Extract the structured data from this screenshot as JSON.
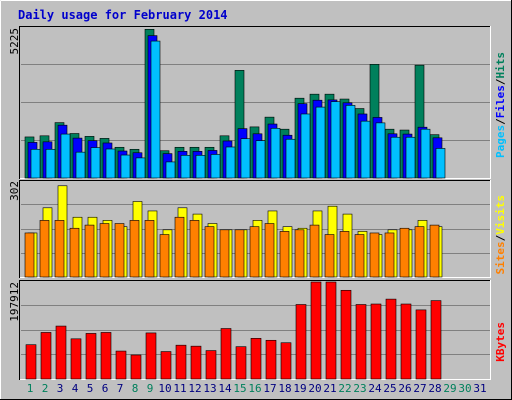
{
  "title": "Daily usage for February 2014",
  "colors": {
    "background": "#c0c0c0",
    "title": "#0000cc",
    "hits": "#00805c",
    "files": "#0000ff",
    "pages": "#00c0ff",
    "visits": "#ffff00",
    "sites": "#ff8000",
    "kbytes": "#ff0000",
    "weekday_label": "#000080",
    "weekend_label": "#00805c"
  },
  "chart_data": [
    {
      "type": "bar",
      "name": "hits-files-pages",
      "categories": [
        "1",
        "2",
        "3",
        "4",
        "5",
        "6",
        "7",
        "8",
        "9",
        "10",
        "11",
        "12",
        "13",
        "14",
        "15",
        "16",
        "17",
        "18",
        "19",
        "20",
        "21",
        "22",
        "23",
        "24",
        "25",
        "26",
        "27",
        "28",
        "29",
        "30",
        "31"
      ],
      "ymax_label": "5225",
      "ylim": [
        0,
        5225
      ],
      "grid": true,
      "right_label": [
        "Pages",
        "Files",
        "Hits"
      ],
      "series": [
        {
          "name": "Hits",
          "values": [
            1430,
            1470,
            1930,
            1550,
            1450,
            1380,
            1070,
            1000,
            5180,
            950,
            1070,
            1070,
            1070,
            1470,
            3750,
            1780,
            2120,
            1700,
            2780,
            2920,
            2920,
            2750,
            2420,
            3960,
            1700,
            1670,
            3930,
            1510,
            0,
            0,
            0
          ]
        },
        {
          "name": "Files",
          "values": [
            1240,
            1260,
            1840,
            1390,
            1300,
            1220,
            940,
            880,
            4960,
            850,
            930,
            930,
            960,
            1290,
            1720,
            1540,
            1880,
            1490,
            2590,
            2710,
            2720,
            2620,
            2230,
            2110,
            1540,
            1530,
            1770,
            1400,
            0,
            0,
            0
          ]
        },
        {
          "name": "Pages",
          "values": [
            1000,
            1000,
            1530,
            900,
            1060,
            1010,
            800,
            700,
            4770,
            560,
            790,
            790,
            820,
            1080,
            1370,
            1300,
            1730,
            1350,
            2230,
            2470,
            2660,
            2530,
            1980,
            1920,
            1420,
            1420,
            1700,
            1030,
            0,
            0,
            0
          ]
        }
      ]
    },
    {
      "type": "bar",
      "name": "visits-sites",
      "categories": [
        "1",
        "2",
        "3",
        "4",
        "5",
        "6",
        "7",
        "8",
        "9",
        "10",
        "11",
        "12",
        "13",
        "14",
        "15",
        "16",
        "17",
        "18",
        "19",
        "20",
        "21",
        "22",
        "23",
        "24",
        "25",
        "26",
        "27",
        "28",
        "29",
        "30",
        "31"
      ],
      "ymax_label": "302",
      "ylim": [
        0,
        302
      ],
      "grid": true,
      "right_label": [
        "Sites",
        "Visits"
      ],
      "series": [
        {
          "name": "Visits",
          "values": [
            140,
            220,
            290,
            190,
            190,
            180,
            160,
            240,
            210,
            150,
            220,
            200,
            170,
            150,
            150,
            180,
            210,
            160,
            155,
            210,
            225,
            200,
            145,
            135,
            150,
            150,
            180,
            160,
            0,
            0,
            0
          ]
        },
        {
          "name": "Sites",
          "values": [
            140,
            180,
            180,
            155,
            165,
            170,
            170,
            180,
            180,
            135,
            190,
            180,
            160,
            150,
            150,
            160,
            170,
            145,
            150,
            165,
            135,
            145,
            135,
            140,
            140,
            155,
            160,
            165,
            0,
            0,
            0
          ]
        }
      ]
    },
    {
      "type": "bar",
      "name": "kbytes",
      "categories": [
        "1",
        "2",
        "3",
        "4",
        "5",
        "6",
        "7",
        "8",
        "9",
        "10",
        "11",
        "12",
        "13",
        "14",
        "15",
        "16",
        "17",
        "18",
        "19",
        "20",
        "21",
        "22",
        "23",
        "24",
        "25",
        "26",
        "27",
        "28",
        "29",
        "30",
        "31"
      ],
      "ymax_label": "197912",
      "ylim": [
        0,
        197912
      ],
      "grid": true,
      "right_label": [
        "KBytes"
      ],
      "series": [
        {
          "name": "KBytes",
          "values": [
            70000,
            95000,
            108000,
            82000,
            93000,
            95000,
            57000,
            49000,
            94000,
            56000,
            69000,
            67000,
            58000,
            103000,
            66000,
            83000,
            79000,
            74000,
            152000,
            197912,
            197912,
            181000,
            152000,
            153000,
            163000,
            153000,
            141000,
            160000,
            0,
            0,
            0
          ]
        }
      ]
    }
  ],
  "x_labels": [
    "1",
    "2",
    "3",
    "4",
    "5",
    "6",
    "7",
    "8",
    "9",
    "10",
    "11",
    "12",
    "13",
    "14",
    "15",
    "16",
    "17",
    "18",
    "19",
    "20",
    "21",
    "22",
    "23",
    "24",
    "25",
    "26",
    "27",
    "28",
    "29",
    "30",
    "31"
  ],
  "weekend_days": [
    "1",
    "2",
    "8",
    "9",
    "15",
    "16",
    "22",
    "23",
    "29",
    "30"
  ]
}
